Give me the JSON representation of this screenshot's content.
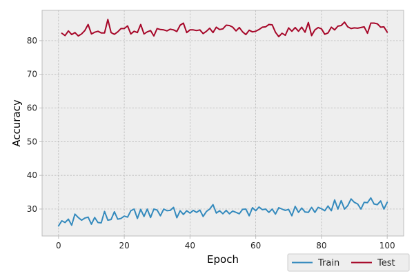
{
  "chart_data": {
    "type": "line",
    "title": "",
    "xlabel": "Epoch",
    "ylabel": "Accuracy",
    "xlim": [
      -5,
      105
    ],
    "ylim": [
      22,
      89
    ],
    "xticks": [
      0,
      20,
      40,
      60,
      80,
      100
    ],
    "yticks": [
      30,
      40,
      50,
      60,
      70,
      80
    ],
    "grid": true,
    "style": "bmh",
    "legend": {
      "placement": "lower-right-outside",
      "columns": 2
    },
    "series": [
      {
        "name": "Train",
        "color": "#348ABD",
        "x": [
          0,
          1,
          2,
          3,
          4,
          5,
          6,
          7,
          8,
          9,
          10,
          11,
          12,
          13,
          14,
          15,
          16,
          17,
          18,
          19,
          20,
          21,
          22,
          23,
          24,
          25,
          26,
          27,
          28,
          29,
          30,
          31,
          32,
          33,
          34,
          35,
          36,
          37,
          38,
          39,
          40,
          41,
          42,
          43,
          44,
          45,
          46,
          47,
          48,
          49,
          50,
          51,
          52,
          53,
          54,
          55,
          56,
          57,
          58,
          59,
          60,
          61,
          62,
          63,
          64,
          65,
          66,
          67,
          68,
          69,
          70,
          71,
          72,
          73,
          74,
          75,
          76,
          77,
          78,
          79,
          80,
          81,
          82,
          83,
          84,
          85,
          86,
          87,
          88,
          89,
          90,
          91,
          92,
          93,
          94,
          95,
          96,
          97,
          98,
          99,
          100
        ],
        "values": [
          25.0,
          26.5,
          26.0,
          27.0,
          25.2,
          28.5,
          27.5,
          26.7,
          27.3,
          27.6,
          25.5,
          27.5,
          26.0,
          25.9,
          29.3,
          26.7,
          26.9,
          29.2,
          27.0,
          27.2,
          27.9,
          27.6,
          29.5,
          30.0,
          27.2,
          29.9,
          27.8,
          30.0,
          27.5,
          30.0,
          29.7,
          28.0,
          30.0,
          29.5,
          29.6,
          30.5,
          27.4,
          29.5,
          28.4,
          29.5,
          28.8,
          29.6,
          29.0,
          29.7,
          27.8,
          29.3,
          30.0,
          31.3,
          28.8,
          29.5,
          28.6,
          29.6,
          28.6,
          29.4,
          29.0,
          28.6,
          29.9,
          30.0,
          28.0,
          30.4,
          29.5,
          30.6,
          29.8,
          30.0,
          29.0,
          30.0,
          28.5,
          30.4,
          30.0,
          29.6,
          29.9,
          28.0,
          30.8,
          29.0,
          30.3,
          29.1,
          29.0,
          30.5,
          29.0,
          30.5,
          30.1,
          29.5,
          30.9,
          29.5,
          32.7,
          30.0,
          32.5,
          30.0,
          31.0,
          33.0,
          32.0,
          31.5,
          30.0,
          32.0,
          31.9,
          33.3,
          31.5,
          31.3,
          32.4,
          30.0,
          32.0
        ]
      },
      {
        "name": "Test",
        "color": "#A60628",
        "x": [
          1,
          2,
          3,
          4,
          5,
          6,
          7,
          8,
          9,
          10,
          11,
          12,
          13,
          14,
          15,
          16,
          17,
          18,
          19,
          20,
          21,
          22,
          23,
          24,
          25,
          26,
          27,
          28,
          29,
          30,
          31,
          32,
          33,
          34,
          35,
          36,
          37,
          38,
          39,
          40,
          41,
          42,
          43,
          44,
          45,
          46,
          47,
          48,
          49,
          50,
          51,
          52,
          53,
          54,
          55,
          56,
          57,
          58,
          59,
          60,
          61,
          62,
          63,
          64,
          65,
          66,
          67,
          68,
          69,
          70,
          71,
          72,
          73,
          74,
          75,
          76,
          77,
          78,
          79,
          80,
          81,
          82,
          83,
          84,
          85,
          86,
          87,
          88,
          89,
          90,
          91,
          92,
          93,
          94,
          95,
          96,
          97,
          98,
          99,
          100
        ],
        "values": [
          82.2,
          81.5,
          82.9,
          81.8,
          82.4,
          81.4,
          82.0,
          83.0,
          84.8,
          82.0,
          82.5,
          82.8,
          82.3,
          82.3,
          86.3,
          82.4,
          81.9,
          82.6,
          83.6,
          83.6,
          84.4,
          82.0,
          82.8,
          82.4,
          84.8,
          82.0,
          82.6,
          83.0,
          81.4,
          83.6,
          83.3,
          83.2,
          82.9,
          83.4,
          83.2,
          82.7,
          84.6,
          85.2,
          82.4,
          83.2,
          83.2,
          83.0,
          83.2,
          82.1,
          82.8,
          83.7,
          82.4,
          84.0,
          83.3,
          83.5,
          84.6,
          84.5,
          84.0,
          82.9,
          83.9,
          82.6,
          81.8,
          83.1,
          82.6,
          82.8,
          83.3,
          84.0,
          84.1,
          84.8,
          84.7,
          82.5,
          81.2,
          82.2,
          81.6,
          83.8,
          82.8,
          83.9,
          82.8,
          84.0,
          82.5,
          85.4,
          81.5,
          83.2,
          83.9,
          83.5,
          81.9,
          82.3,
          84.0,
          83.2,
          84.3,
          84.5,
          85.5,
          84.1,
          83.6,
          83.8,
          83.7,
          83.9,
          84.1,
          82.2,
          85.2,
          85.2,
          85.0,
          84.0,
          84.1,
          82.5
        ]
      }
    ]
  }
}
